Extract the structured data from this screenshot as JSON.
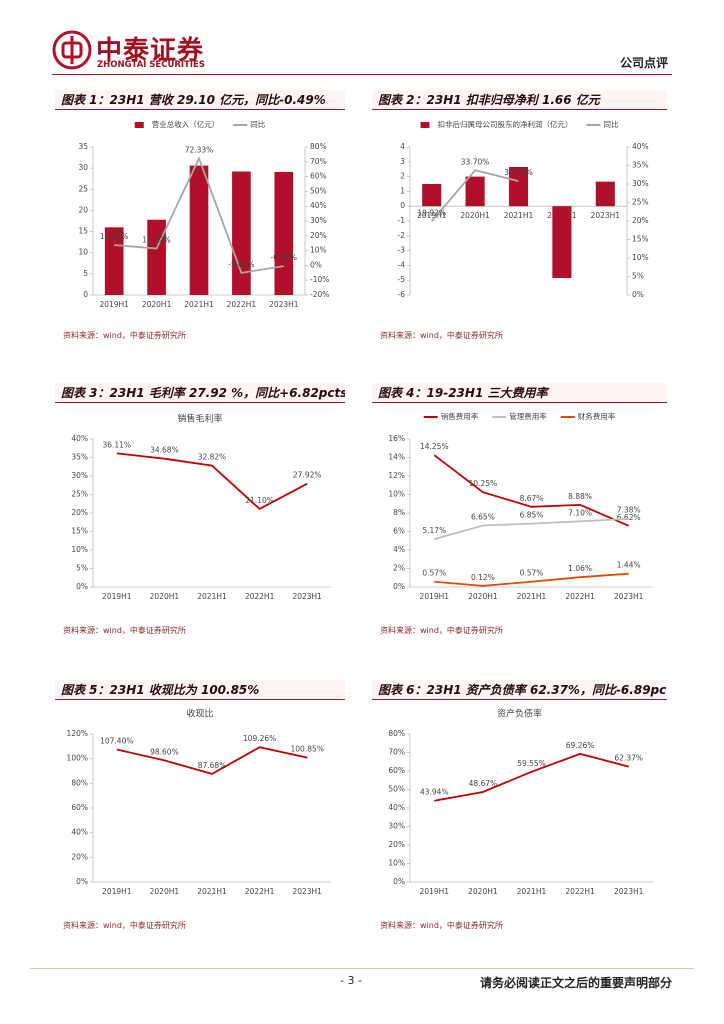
{
  "header": {
    "logo_name": "中泰证券",
    "logo_english": "ZHONGTAI SECURITIES",
    "section": "公司点评"
  },
  "figures": [
    {
      "title": "图表 1：23H1 营收 29.10 亿元，同比-0.49%",
      "source": "资料来源：wind，中泰证券研究所",
      "chart_data": {
        "type": "combo",
        "legend": "top",
        "categories": [
          "2019H1",
          "2020H1",
          "2021H1",
          "2022H1",
          "2023H1"
        ],
        "series": [
          {
            "name": "营业总收入（亿元）",
            "type": "bar",
            "color": "#b0102a",
            "values": [
              16.0,
              17.8,
              30.6,
              29.2,
              29.1
            ]
          },
          {
            "name": "同比",
            "type": "line",
            "axis": "y2",
            "color": "#a6a6a6",
            "values": [
              13.79,
              11.42,
              72.33,
              -5.06,
              -0.49
            ],
            "value_labels": [
              "13.79%",
              "11.42%",
              "72.33%",
              "-5.06%",
              "-0.49%"
            ]
          }
        ],
        "ylim": [
          0,
          35
        ],
        "yticks": [
          0,
          5,
          10,
          15,
          20,
          25,
          30,
          35
        ],
        "y2lim": [
          -20,
          80
        ],
        "y2ticks": [
          {
            "value": -20,
            "label": "-20%"
          },
          {
            "value": -10,
            "label": "-10%"
          },
          {
            "value": 0,
            "label": "0%"
          },
          {
            "value": 10,
            "label": "10%"
          },
          {
            "value": 20,
            "label": "20%"
          },
          {
            "value": 30,
            "label": "30%"
          },
          {
            "value": 40,
            "label": "40%"
          },
          {
            "value": 50,
            "label": "50%"
          },
          {
            "value": 60,
            "label": "60%"
          },
          {
            "value": 70,
            "label": "70%"
          },
          {
            "value": 80,
            "label": "80%"
          }
        ]
      }
    },
    {
      "title": "图表 2：23H1 扣非归母净利 1.66 亿元",
      "source": "资料来源：wind，中泰证券研究所",
      "chart_data": {
        "type": "combo",
        "legend": "top",
        "categories": [
          "2019H1",
          "2020H1",
          "2021H1",
          "2022H1",
          "2023H1"
        ],
        "series": [
          {
            "name": "扣非后归属母公司股东的净利润（亿元）",
            "type": "bar",
            "color": "#b0102a",
            "values": [
              1.5,
              2.0,
              2.65,
              -4.85,
              1.66
            ]
          },
          {
            "name": "同比",
            "type": "line",
            "axis": "y2",
            "color": "#a6a6a6",
            "values": [
              19.92,
              33.7,
              30.79,
              null,
              null
            ],
            "value_labels": [
              "19.92%",
              "33.70%",
              "30.79%",
              null,
              null
            ]
          }
        ],
        "ylim": [
          -6,
          4
        ],
        "yticks": [
          -6,
          -5,
          -4,
          -3,
          -2,
          -1,
          0,
          1,
          2,
          3,
          4
        ],
        "y2lim": [
          0,
          40
        ],
        "y2ticks": [
          {
            "value": 0,
            "label": "0%"
          },
          {
            "value": 5,
            "label": "5%"
          },
          {
            "value": 10,
            "label": "10%"
          },
          {
            "value": 15,
            "label": "15%"
          },
          {
            "value": 20,
            "label": "20%"
          },
          {
            "value": 25,
            "label": "25%"
          },
          {
            "value": 30,
            "label": "30%"
          },
          {
            "value": 35,
            "label": "35%"
          },
          {
            "value": 40,
            "label": "40%"
          }
        ]
      }
    },
    {
      "title": "图表 3：23H1 毛利率 27.92 %，同比+6.82pcts",
      "source": "资料来源：wind，中泰证券研究所",
      "chart_data": {
        "type": "line",
        "title": "销售毛利率",
        "categories": [
          "2019H1",
          "2020H1",
          "2021H1",
          "2022H1",
          "2023H1"
        ],
        "series": [
          {
            "color": "#c00000",
            "values": [
              36.11,
              34.68,
              32.82,
              21.1,
              27.92
            ],
            "value_labels": [
              "36.11%",
              "34.68%",
              "32.82%",
              "21.10%",
              "27.92%"
            ]
          }
        ],
        "ylim": [
          0,
          40
        ],
        "yticks": [
          {
            "value": 0,
            "label": "0%"
          },
          {
            "value": 5,
            "label": "5%"
          },
          {
            "value": 10,
            "label": "10%"
          },
          {
            "value": 15,
            "label": "15%"
          },
          {
            "value": 20,
            "label": "20%"
          },
          {
            "value": 25,
            "label": "25%"
          },
          {
            "value": 30,
            "label": "30%"
          },
          {
            "value": 35,
            "label": "35%"
          },
          {
            "value": 40,
            "label": "40%"
          }
        ]
      }
    },
    {
      "title": "图表 4：19-23H1 三大费用率",
      "source": "资料来源：wind，中泰证券研究所",
      "chart_data": {
        "type": "line",
        "legend": "top",
        "categories": [
          "2019H1",
          "2020H1",
          "2021H1",
          "2022H1",
          "2023H1"
        ],
        "series": [
          {
            "name": "销售费用率",
            "color": "#c00000",
            "values": [
              14.25,
              10.25,
              8.67,
              8.88,
              6.62
            ],
            "value_labels": [
              "14.25%",
              "10.25%",
              "8.67%",
              "8.88%",
              "6.62%"
            ]
          },
          {
            "name": "管理费用率",
            "color": "#bfbfbf",
            "values": [
              5.17,
              6.65,
              6.85,
              7.1,
              7.38
            ],
            "value_labels": [
              "5.17%",
              "6.65%",
              "6.85%",
              "7.10%",
              "7.38%"
            ]
          },
          {
            "name": "财务费用率",
            "color": "#e04a00",
            "values": [
              0.57,
              0.12,
              0.57,
              1.06,
              1.44
            ],
            "value_labels": [
              "0.57%",
              "0.12%",
              "0.57%",
              "1.06%",
              "1.44%"
            ]
          }
        ],
        "ylim": [
          0,
          16
        ],
        "yticks": [
          {
            "value": 0,
            "label": "0%"
          },
          {
            "value": 2,
            "label": "2%"
          },
          {
            "value": 4,
            "label": "4%"
          },
          {
            "value": 6,
            "label": "6%"
          },
          {
            "value": 8,
            "label": "8%"
          },
          {
            "value": 10,
            "label": "10%"
          },
          {
            "value": 12,
            "label": "12%"
          },
          {
            "value": 14,
            "label": "14%"
          },
          {
            "value": 16,
            "label": "16%"
          }
        ]
      }
    },
    {
      "title": "图表 5：23H1 收现比为 100.85%",
      "source": "资料来源：wind，中泰证券研究所",
      "chart_data": {
        "type": "line",
        "title": "收现比",
        "categories": [
          "2019H1",
          "2020H1",
          "2021H1",
          "2022H1",
          "2023H1"
        ],
        "series": [
          {
            "color": "#c00000",
            "values": [
              107.4,
              98.6,
              87.68,
              109.26,
              100.85
            ],
            "value_labels": [
              "107.40%",
              "98.60%",
              "87.68%",
              "109.26%",
              "100.85%"
            ]
          }
        ],
        "ylim": [
          0,
          120
        ],
        "yticks": [
          {
            "value": 0,
            "label": "0%"
          },
          {
            "value": 20,
            "label": "20%"
          },
          {
            "value": 40,
            "label": "40%"
          },
          {
            "value": 60,
            "label": "60%"
          },
          {
            "value": 80,
            "label": "80%"
          },
          {
            "value": 100,
            "label": "100%"
          },
          {
            "value": 120,
            "label": "120%"
          }
        ]
      }
    },
    {
      "title": "图表 6：23H1 资产负债率 62.37%，同比-6.89pcts",
      "source": "资料来源：wind，中泰证券研究所",
      "chart_data": {
        "type": "line",
        "title": "资产负债率",
        "categories": [
          "2019H1",
          "2020H1",
          "2021H1",
          "2022H1",
          "2023H1"
        ],
        "series": [
          {
            "color": "#c00000",
            "values": [
              43.94,
              48.67,
              59.55,
              69.26,
              62.37
            ],
            "value_labels": [
              "43.94%",
              "48.67%",
              "59.55%",
              "69.26%",
              "62.37%"
            ]
          }
        ],
        "ylim": [
          0,
          80
        ],
        "yticks": [
          {
            "value": 0,
            "label": "0%"
          },
          {
            "value": 10,
            "label": "10%"
          },
          {
            "value": 20,
            "label": "20%"
          },
          {
            "value": 30,
            "label": "30%"
          },
          {
            "value": 40,
            "label": "40%"
          },
          {
            "value": 50,
            "label": "50%"
          },
          {
            "value": 60,
            "label": "60%"
          },
          {
            "value": 70,
            "label": "70%"
          },
          {
            "value": 80,
            "label": "80%"
          }
        ]
      }
    }
  ],
  "footer": {
    "page": "- 3 -",
    "notice": "请务必阅读正文之后的重要声明部分"
  }
}
